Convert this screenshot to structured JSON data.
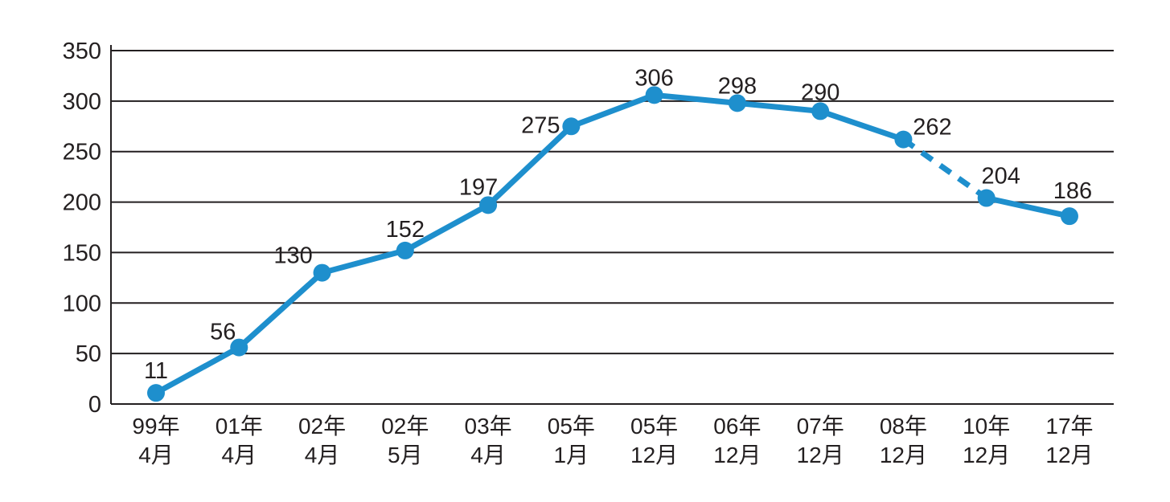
{
  "chart_data": {
    "type": "line",
    "title": "",
    "xlabel": "",
    "ylabel": "",
    "categories": [
      {
        "line1": "99年",
        "line2": "4月"
      },
      {
        "line1": "01年",
        "line2": "4月"
      },
      {
        "line1": "02年",
        "line2": "4月"
      },
      {
        "line1": "02年",
        "line2": "5月"
      },
      {
        "line1": "03年",
        "line2": "4月"
      },
      {
        "line1": "05年",
        "line2": "1月"
      },
      {
        "line1": "05年",
        "line2": "12月"
      },
      {
        "line1": "06年",
        "line2": "12月"
      },
      {
        "line1": "07年",
        "line2": "12月"
      },
      {
        "line1": "08年",
        "line2": "12月"
      },
      {
        "line1": "10年",
        "line2": "12月"
      },
      {
        "line1": "17年",
        "line2": "12月"
      }
    ],
    "values": [
      11,
      56,
      130,
      152,
      197,
      275,
      306,
      298,
      290,
      262,
      204,
      186
    ],
    "point_labels": [
      "11",
      "56",
      "130",
      "152",
      "197",
      "275",
      "306",
      "298",
      "290",
      "262",
      "204",
      "186"
    ],
    "y_ticks": [
      0,
      50,
      100,
      150,
      200,
      250,
      300,
      350
    ],
    "ylim": [
      0,
      350
    ],
    "grid": true,
    "legend_position": "none",
    "dashed_segment_between_indices": [
      9,
      10
    ],
    "colors": {
      "line": "#1e8fcd",
      "marker": "#1e8fcd",
      "axis": "#231f20",
      "text": "#231f20",
      "background": "#ffffff"
    },
    "layout": {
      "label_dx": [
        0,
        -20,
        -36,
        0,
        -12,
        -38,
        0,
        0,
        0,
        36,
        18,
        4
      ],
      "label_dy": [
        -18,
        -10,
        -12,
        -17,
        -13,
        8,
        -12,
        -12,
        -14,
        -6,
        -18,
        -22
      ]
    }
  }
}
